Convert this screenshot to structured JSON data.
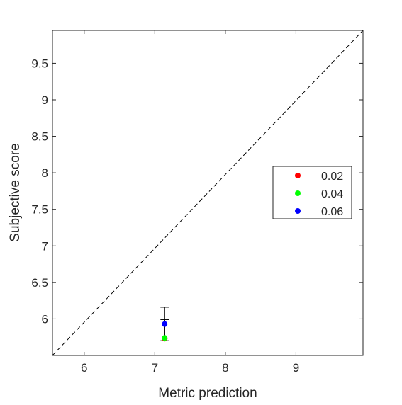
{
  "chart_data": {
    "type": "scatter",
    "title": "",
    "xlabel": "Metric prediction",
    "ylabel": "Subjective score",
    "xlim": [
      5.55,
      9.95
    ],
    "ylim": [
      5.5,
      9.95
    ],
    "xticks": [
      6,
      7,
      8,
      9
    ],
    "xtick_labels": [
      "6",
      "7",
      "8",
      "9"
    ],
    "yticks": [
      6,
      6.5,
      7,
      7.5,
      8,
      8.5,
      9,
      9.5
    ],
    "ytick_labels": [
      "6",
      "6.5",
      "7",
      "7.5",
      "8",
      "8.5",
      "9",
      "9.5"
    ],
    "grid": false,
    "legend_position": "right",
    "reference_line": {
      "style": "dashed",
      "color": "#000000",
      "from": [
        5.55,
        5.5
      ],
      "to": [
        9.95,
        9.95
      ]
    },
    "series": [
      {
        "name": "0.02",
        "color": "#ff0000",
        "x": [
          7.14
        ],
        "y": [
          5.73
        ],
        "err_low": [
          5.7
        ],
        "err_high": [
          5.97
        ]
      },
      {
        "name": "0.04",
        "color": "#00ff00",
        "x": [
          7.14
        ],
        "y": [
          5.74
        ],
        "err_low": [
          5.7
        ],
        "err_high": [
          5.99
        ]
      },
      {
        "name": "0.06",
        "color": "#0000ff",
        "x": [
          7.14
        ],
        "y": [
          5.93
        ],
        "err_low": [
          5.7
        ],
        "err_high": [
          6.16
        ]
      }
    ]
  }
}
